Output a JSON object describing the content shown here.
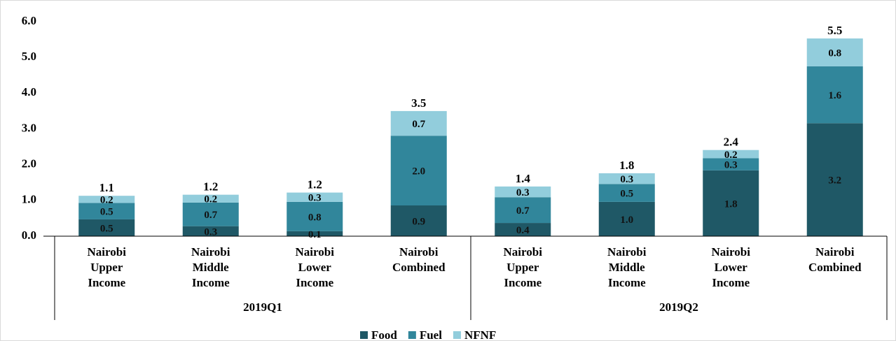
{
  "chart_data": {
    "type": "bar",
    "stacked": true,
    "categories": [
      "Nairobi Upper Income",
      "Nairobi Middle Income",
      "Nairobi Lower Income",
      "Nairobi Combined",
      "Nairobi Upper Income",
      "Nairobi Middle Income",
      "Nairobi Lower Income",
      "Nairobi Combined"
    ],
    "groups": [
      {
        "label": "2019Q1",
        "size": 4
      },
      {
        "label": "2019Q2",
        "size": 4
      }
    ],
    "series": [
      {
        "name": "Food",
        "color": "#1f5866",
        "values": [
          0.47,
          0.28,
          0.14,
          0.86,
          0.37,
          0.96,
          1.84,
          3.16
        ],
        "value_labels": [
          "0.5",
          "0.3",
          "0.1",
          "0.9",
          "0.4",
          "1.0",
          "1.8",
          "3.2"
        ]
      },
      {
        "name": "Fuel",
        "color": "#31869b",
        "values": [
          0.46,
          0.66,
          0.82,
          1.95,
          0.72,
          0.5,
          0.34,
          1.59
        ],
        "value_labels": [
          "0.5",
          "0.7",
          "0.8",
          "2.0",
          "0.7",
          "0.5",
          "0.3",
          "1.6"
        ]
      },
      {
        "name": "NFNF",
        "color": "#92cddc",
        "values": [
          0.2,
          0.22,
          0.26,
          0.69,
          0.3,
          0.3,
          0.23,
          0.78
        ],
        "value_labels": [
          "0.2",
          "0.2",
          "0.3",
          "0.7",
          "0.3",
          "0.3",
          "0.2",
          "0.8"
        ]
      }
    ],
    "total_labels": [
      "1.1",
      "1.2",
      "1.2",
      "3.5",
      "1.4",
      "1.8",
      "2.4",
      "5.5"
    ],
    "ylim": [
      0,
      6
    ],
    "yticks": [
      {
        "value": 0,
        "label": "0.0"
      },
      {
        "value": 1,
        "label": "1.0"
      },
      {
        "value": 2,
        "label": "2.0"
      },
      {
        "value": 3,
        "label": "3.0"
      },
      {
        "value": 4,
        "label": "4.0"
      },
      {
        "value": 5,
        "label": "5.0"
      },
      {
        "value": 6,
        "label": "6.0"
      }
    ],
    "grid": false,
    "legend": "bottom"
  }
}
